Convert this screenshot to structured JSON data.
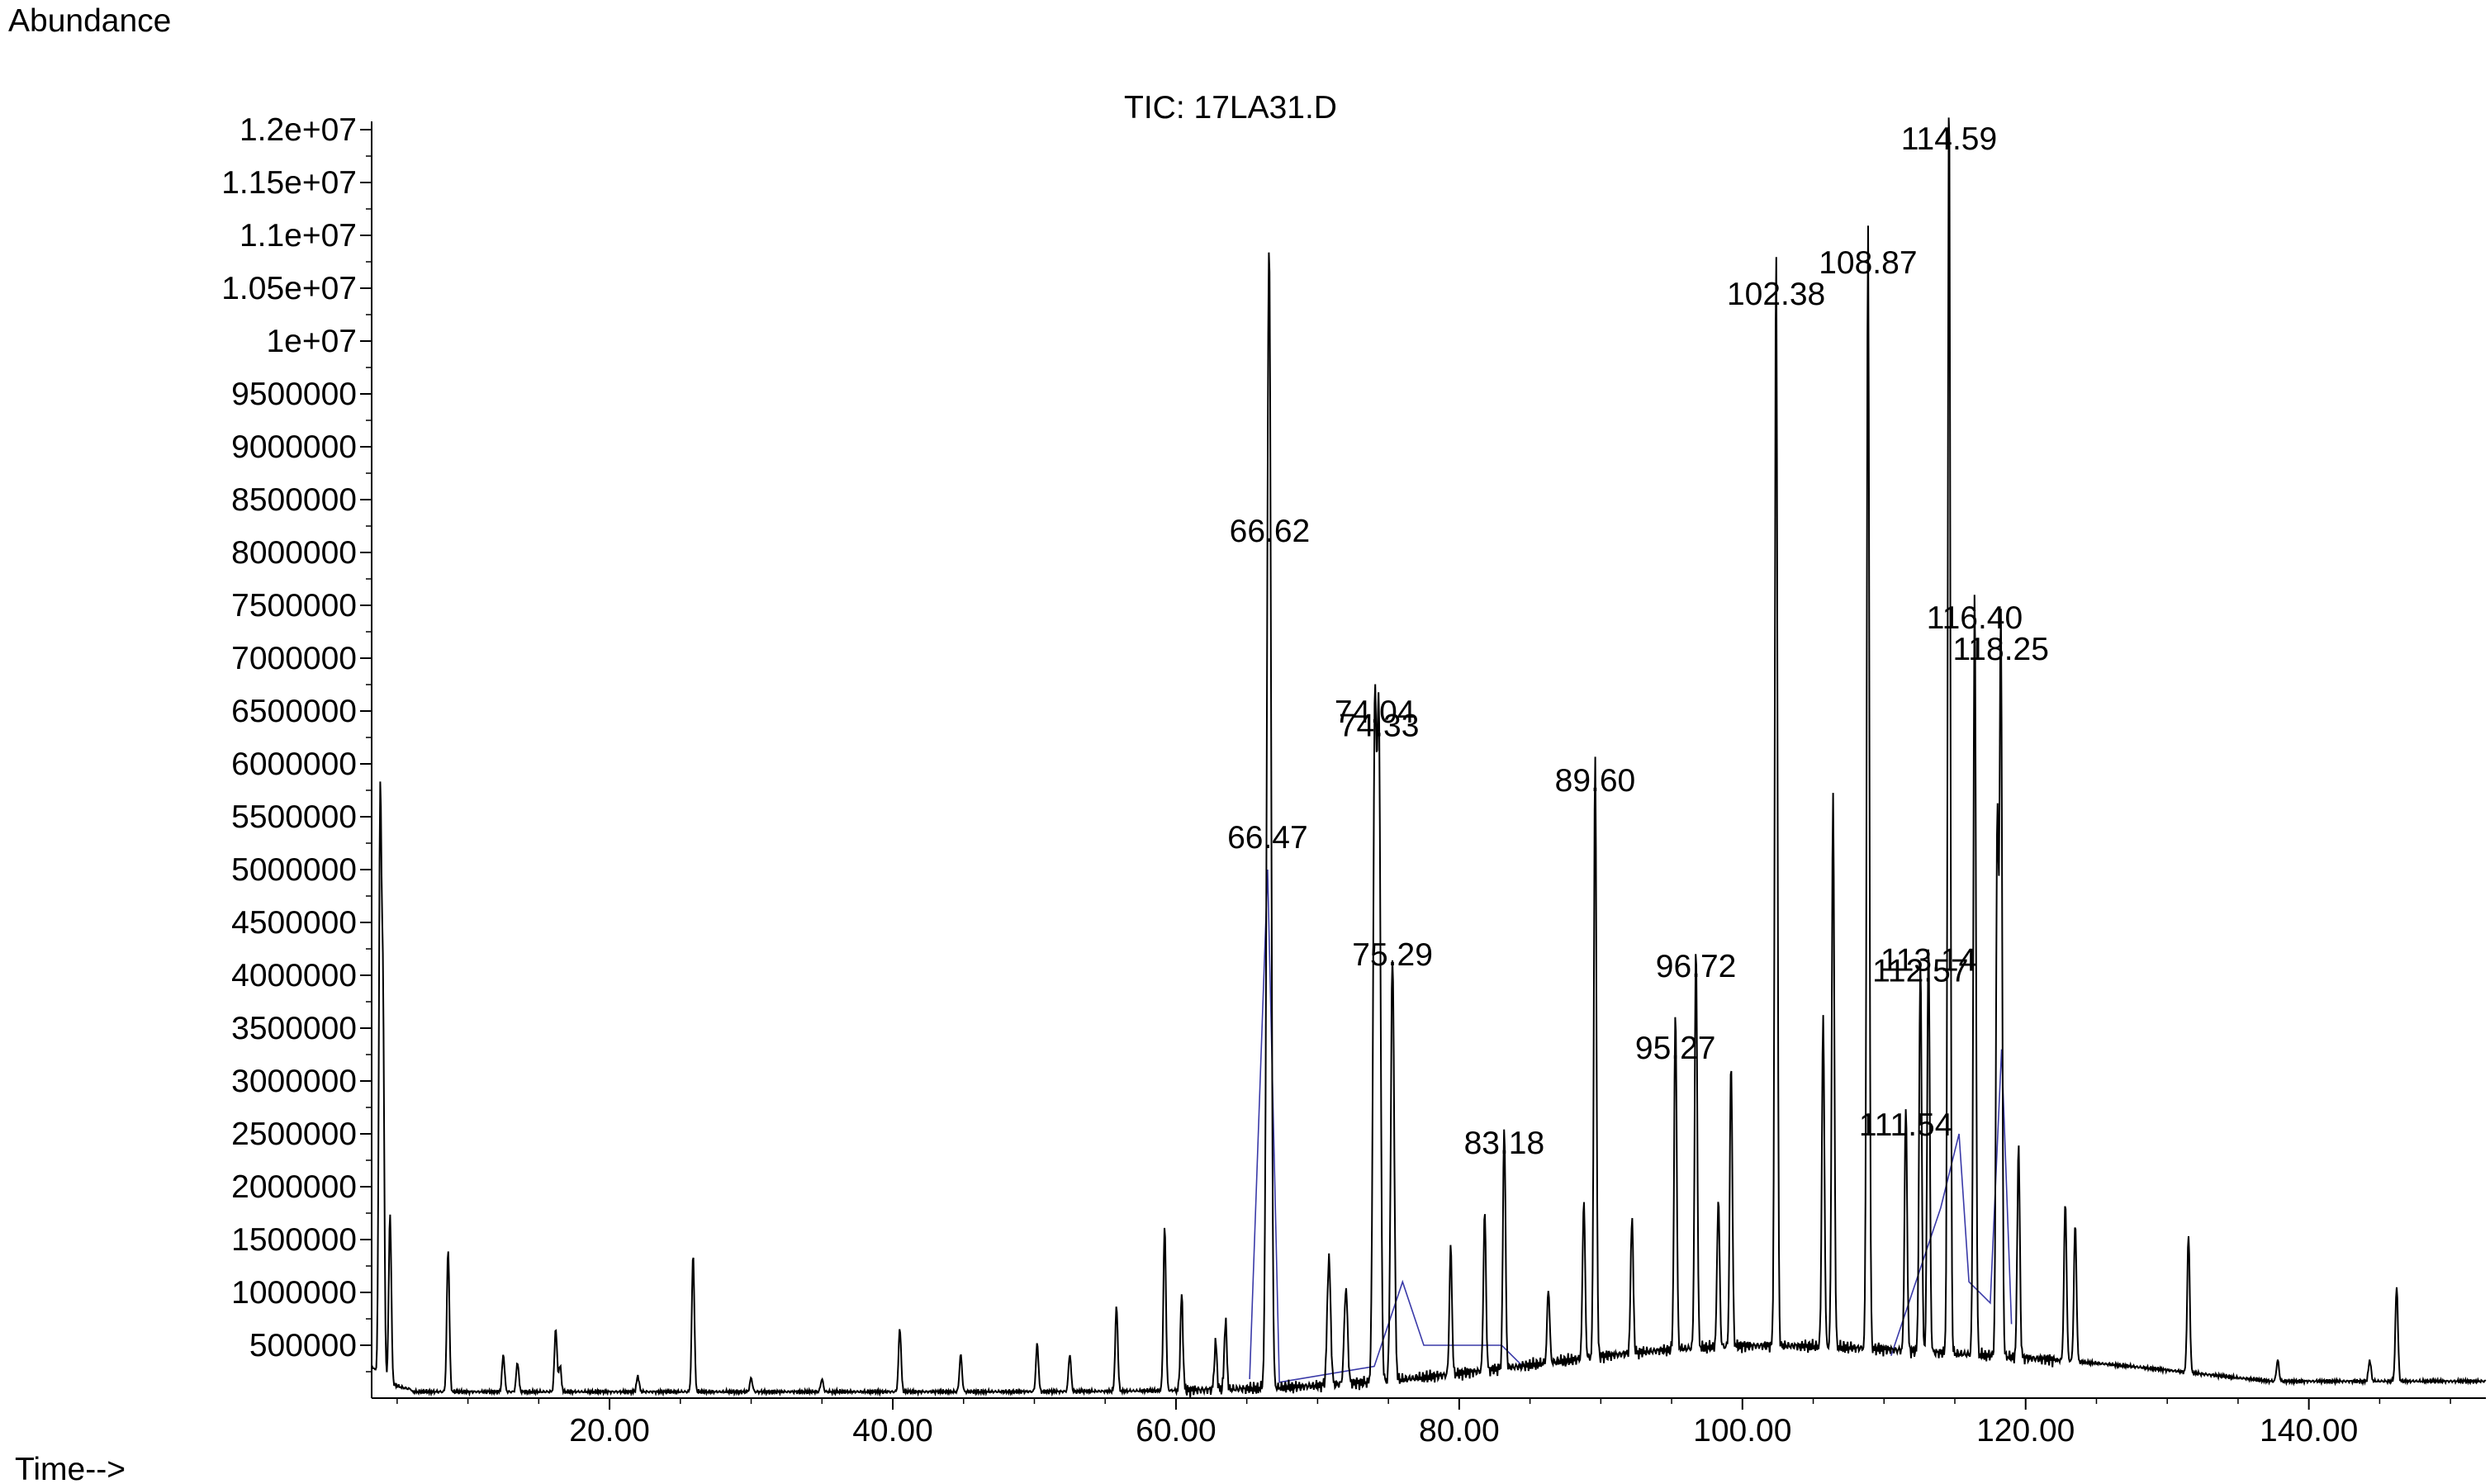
{
  "chart_data": {
    "type": "line",
    "title": "TIC: 17LA31.D",
    "ylabel": "Abundance",
    "xlabel": "Time-->",
    "xlim": [
      3.2,
      152.5
    ],
    "ylim": [
      0,
      12000000
    ],
    "grid": false,
    "x_ticks": [
      {
        "value": 20,
        "label": "20.00"
      },
      {
        "value": 40,
        "label": "40.00"
      },
      {
        "value": 60,
        "label": "60.00"
      },
      {
        "value": 80,
        "label": "80.00"
      },
      {
        "value": 100,
        "label": "100.00"
      },
      {
        "value": 120,
        "label": "120.00"
      },
      {
        "value": 140,
        "label": "140.00"
      }
    ],
    "y_ticks": [
      {
        "value": 500000,
        "label": "500000"
      },
      {
        "value": 1000000,
        "label": "1000000"
      },
      {
        "value": 1500000,
        "label": "1500000"
      },
      {
        "value": 2000000,
        "label": "2000000"
      },
      {
        "value": 2500000,
        "label": "2500000"
      },
      {
        "value": 3000000,
        "label": "3000000"
      },
      {
        "value": 3500000,
        "label": "3500000"
      },
      {
        "value": 4000000,
        "label": "4000000"
      },
      {
        "value": 4500000,
        "label": "4500000"
      },
      {
        "value": 5000000,
        "label": "5000000"
      },
      {
        "value": 5500000,
        "label": "5500000"
      },
      {
        "value": 6000000,
        "label": "6000000"
      },
      {
        "value": 6500000,
        "label": "6500000"
      },
      {
        "value": 7000000,
        "label": "7000000"
      },
      {
        "value": 7500000,
        "label": "7500000"
      },
      {
        "value": 8000000,
        "label": "8000000"
      },
      {
        "value": 8500000,
        "label": "8500000"
      },
      {
        "value": 9000000,
        "label": "9000000"
      },
      {
        "value": 9500000,
        "label": "9500000"
      },
      {
        "value": 10000000,
        "label": "1e+07"
      },
      {
        "value": 10500000,
        "label": "1.05e+07"
      },
      {
        "value": 11000000,
        "label": "1.1e+07"
      },
      {
        "value": 11500000,
        "label": "1.15e+07"
      },
      {
        "value": 12000000,
        "label": "1.2e+07"
      }
    ],
    "series": [
      {
        "peaks": [
          [
            3.8,
            5300000
          ],
          [
            4.0,
            3500000
          ],
          [
            4.5,
            1600000
          ],
          [
            8.6,
            1350000
          ],
          [
            12.5,
            350000
          ],
          [
            13.5,
            280000
          ],
          [
            16.2,
            600000
          ],
          [
            16.5,
            250000
          ],
          [
            22,
            150000
          ],
          [
            25.9,
            1300000
          ],
          [
            30,
            130000
          ],
          [
            35,
            120000
          ],
          [
            40.5,
            600000
          ],
          [
            44.8,
            350000
          ],
          [
            50.2,
            450000
          ],
          [
            52.5,
            350000
          ],
          [
            55.8,
            800000
          ],
          [
            59.2,
            1550000
          ],
          [
            60.4,
            900000
          ],
          [
            62.8,
            450000
          ],
          [
            63.5,
            650000
          ],
          [
            66.47,
            4800000
          ],
          [
            66.62,
            8100000
          ],
          [
            70.8,
            1200000
          ],
          [
            72,
            900000
          ],
          [
            74.04,
            6200000
          ],
          [
            74.33,
            6100000
          ],
          [
            75.29,
            4000000
          ],
          [
            79.4,
            1200000
          ],
          [
            81.8,
            1500000
          ],
          [
            83.18,
            2300000
          ],
          [
            86.3,
            700000
          ],
          [
            88.8,
            1500000
          ],
          [
            89.6,
            5700000
          ],
          [
            92.2,
            1300000
          ],
          [
            95.27,
            3200000
          ],
          [
            96.72,
            3800000
          ],
          [
            98.3,
            1400000
          ],
          [
            99.2,
            2700000
          ],
          [
            102.38,
            10400000
          ],
          [
            105.7,
            3100000
          ],
          [
            106.4,
            5200000
          ],
          [
            108.87,
            10600000
          ],
          [
            111.54,
            2300000
          ],
          [
            112.57,
            3700000
          ],
          [
            113.14,
            3900000
          ],
          [
            114.59,
            12000000
          ],
          [
            116.4,
            7200000
          ],
          [
            118.0,
            5100000
          ],
          [
            118.25,
            7000000
          ],
          [
            119.5,
            2000000
          ],
          [
            122.8,
            1500000
          ],
          [
            123.5,
            1300000
          ],
          [
            131.5,
            1300000
          ],
          [
            137.8,
            200000
          ],
          [
            144.3,
            200000
          ],
          [
            146.2,
            900000
          ]
        ]
      }
    ],
    "peak_labels": [
      {
        "label": "114.59",
        "x": 114.59,
        "y": 11750000
      },
      {
        "label": "108.87",
        "x": 108.87,
        "y": 10580000
      },
      {
        "label": "102.38",
        "x": 102.38,
        "y": 10280000
      },
      {
        "label": "66.62",
        "x": 66.62,
        "y": 8040000
      },
      {
        "label": "116.40",
        "x": 116.4,
        "y": 7220000
      },
      {
        "label": "118.25",
        "x": 118.25,
        "y": 6920000
      },
      {
        "label": "74.04",
        "x": 74.04,
        "y": 6330000
      },
      {
        "label": "74.33",
        "x": 74.33,
        "y": 6200000
      },
      {
        "label": "89.60",
        "x": 89.6,
        "y": 5680000
      },
      {
        "label": "66.47",
        "x": 66.47,
        "y": 5140000
      },
      {
        "label": "75.29",
        "x": 75.29,
        "y": 4030000
      },
      {
        "label": "113.14",
        "x": 113.14,
        "y": 3980000
      },
      {
        "label": "96.72",
        "x": 96.72,
        "y": 3920000
      },
      {
        "label": "112.57",
        "x": 112.57,
        "y": 3880000
      },
      {
        "label": "95.27",
        "x": 95.27,
        "y": 3150000
      },
      {
        "label": "111.54",
        "x": 111.54,
        "y": 2420000
      },
      {
        "label": "83.18",
        "x": 83.18,
        "y": 2250000
      }
    ]
  }
}
